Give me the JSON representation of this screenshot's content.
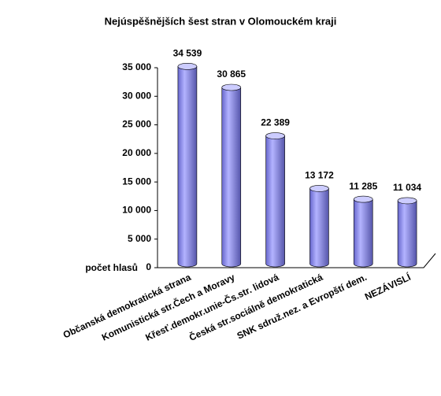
{
  "chart_data": {
    "type": "bar",
    "title": "Nejúspěšnějších šest stran v Olomouckém kraji",
    "y_axis_label": "počet hlasů",
    "categories": [
      "Občanská demokratická strana",
      "Komunistická str.Čech a Moravy",
      "Křesť.demokr.unie-Čs.str. lidová",
      "Česká str.sociálně demokratická",
      "SNK sdruž.nez. a Evropští dem.",
      "NEZÁVISLÍ"
    ],
    "values": [
      34539,
      30865,
      22389,
      13172,
      11285,
      11034
    ],
    "value_labels": [
      "34 539",
      "30 865",
      "22 389",
      "13 172",
      "11 285",
      "11 034"
    ],
    "color": "#9999ff",
    "ylim": [
      0,
      35000
    ],
    "yticks": [
      0,
      {
        "value": 5000,
        "label": "5 000"
      },
      {
        "value": 10000,
        "label": "10 000"
      },
      {
        "value": 15000,
        "label": "15 000"
      },
      {
        "value": 20000,
        "label": "20 000"
      },
      {
        "value": 25000,
        "label": "25 000"
      },
      {
        "value": 30000,
        "label": "30 000"
      },
      {
        "value": 35000,
        "label": "35 000"
      }
    ]
  }
}
